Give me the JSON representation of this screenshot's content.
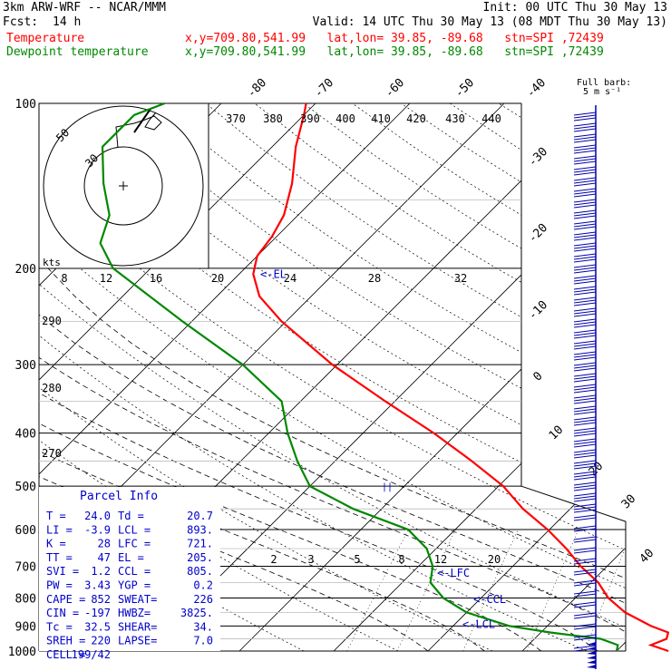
{
  "header": {
    "model": "3km ARW-WRF -- NCAR/MMM",
    "init": "Init: 00 UTC Thu 30 May 13",
    "fcst_label": "Fcst:",
    "fcst_value": "14 h",
    "valid": "Valid: 14 UTC Thu 30 May 13 (08 MDT Thu 30 May 13)",
    "temp_label": "Temperature",
    "temp_loc": "x,y=709.80,541.99   lat,lon= 39.85, -89.68   stn=SPI ,72439",
    "dew_label": "Dewpoint temperature",
    "dew_loc": "x,y=709.80,541.99   lat,lon= 39.85, -89.68   stn=SPI ,72439"
  },
  "colors": {
    "temperature": "#ff0000",
    "dewpoint": "#008800",
    "title_red": "#ff0000",
    "title_green": "#008800",
    "annotation": "#0000cc",
    "parcel_text": "#0000cc"
  },
  "hodograph": {
    "units_label": "kts",
    "ring_labels": [
      "50",
      "30"
    ]
  },
  "barbs": {
    "label_line1": "Full barb:",
    "label_line2": "5 m s⁻¹"
  },
  "parcel": {
    "title": "Parcel Info",
    "rows": [
      [
        "T  =",
        "24.0",
        "Td =",
        "20.7"
      ],
      [
        "LI =",
        "-3.9",
        "LCL =",
        "893."
      ],
      [
        "K  =",
        "28",
        "LFC =",
        "721."
      ],
      [
        "TT =",
        "47",
        "EL  =",
        "205."
      ],
      [
        "SVI =",
        "1.2",
        "CCL =",
        "805."
      ],
      [
        "PW =",
        "3.43",
        "YGP =",
        "0.2"
      ],
      [
        "CAPE =",
        "852",
        "SWEAT=",
        "226"
      ],
      [
        "CIN =",
        "-197",
        "HWBZ=",
        "3825."
      ],
      [
        "Tc =",
        "32.5",
        "SHEAR=",
        "34."
      ],
      [
        "SREH =",
        "220",
        "LAPSE=",
        "7.0"
      ],
      [
        "CELL =",
        "199/42",
        "",
        ""
      ]
    ]
  },
  "chart_data": {
    "type": "line",
    "subtype": "skew-T log-P sounding",
    "pressure_levels": [
      "100",
      "200",
      "300",
      "400",
      "500",
      "600",
      "700",
      "800",
      "900",
      "1000"
    ],
    "isotherm_labels": [
      "-80",
      "-70",
      "-60",
      "-50",
      "-40",
      "-30",
      "-20",
      "-10",
      "0",
      "10",
      "20",
      "30",
      "40"
    ],
    "theta_labels": [
      "370",
      "380",
      "390",
      "400",
      "410",
      "420",
      "430",
      "440"
    ],
    "theta_left_labels": [
      "290",
      "280",
      "270"
    ],
    "mixing_ratio_labels_upper": [
      "8",
      "12",
      "16",
      "20",
      "24",
      "28",
      "32"
    ],
    "mixing_ratio_labels_lower": [
      "2",
      "3",
      "5",
      "8",
      "12",
      "20"
    ],
    "levels_annotations": [
      {
        "label": "<-EL",
        "p": 205
      },
      {
        "label": "<-LFC",
        "p": 721
      },
      {
        "label": "<-CCL",
        "p": 805
      },
      {
        "label": "<-LCL",
        "p": 893
      }
    ],
    "series": [
      {
        "name": "Temperature",
        "points": [
          [
            1000,
            25.5
          ],
          [
            975,
            23.0
          ],
          [
            950,
            24.0
          ],
          [
            925,
            23.5
          ],
          [
            900,
            21.0
          ],
          [
            850,
            16.8
          ],
          [
            800,
            13.5
          ],
          [
            750,
            10.8
          ],
          [
            700,
            7.2
          ],
          [
            650,
            3.8
          ],
          [
            600,
            -0.2
          ],
          [
            550,
            -5.0
          ],
          [
            500,
            -9.5
          ],
          [
            450,
            -15.5
          ],
          [
            400,
            -22.5
          ],
          [
            350,
            -31.0
          ],
          [
            300,
            -40.5
          ],
          [
            250,
            -50.5
          ],
          [
            225,
            -55.5
          ],
          [
            205,
            -58.5
          ],
          [
            190,
            -60.0
          ],
          [
            175,
            -60.5
          ],
          [
            160,
            -61.5
          ],
          [
            140,
            -64.0
          ],
          [
            120,
            -67.5
          ],
          [
            105,
            -70.0
          ],
          [
            100,
            -71.0
          ]
        ]
      },
      {
        "name": "Dewpoint temperature",
        "points": [
          [
            1000,
            20.0
          ],
          [
            975,
            19.5
          ],
          [
            950,
            17.0
          ],
          [
            925,
            11.0
          ],
          [
            900,
            6.0
          ],
          [
            850,
            0.0
          ],
          [
            800,
            -4.0
          ],
          [
            750,
            -7.0
          ],
          [
            700,
            -8.5
          ],
          [
            650,
            -11.0
          ],
          [
            600,
            -15.0
          ],
          [
            550,
            -23.0
          ],
          [
            500,
            -30.0
          ],
          [
            450,
            -34.0
          ],
          [
            400,
            -38.0
          ],
          [
            350,
            -42.0
          ],
          [
            300,
            -50.0
          ],
          [
            250,
            -61.0
          ],
          [
            200,
            -74.0
          ],
          [
            180,
            -78.0
          ],
          [
            160,
            -80.0
          ],
          [
            140,
            -84.0
          ],
          [
            120,
            -88.0
          ],
          [
            105,
            -88.0
          ],
          [
            100,
            -86.0
          ]
        ]
      }
    ]
  }
}
